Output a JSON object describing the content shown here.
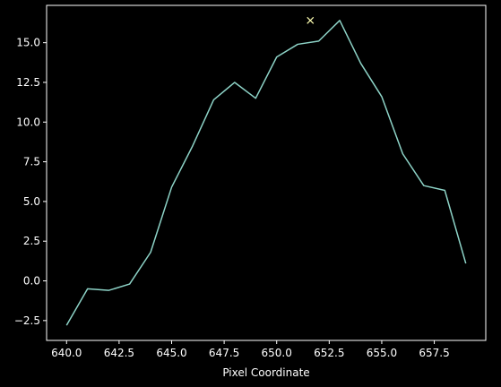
{
  "chart_data": {
    "type": "line",
    "xlabel": "Pixel Coordinate",
    "ylabel": "",
    "title": "",
    "xlim": [
      639.05,
      659.95
    ],
    "ylim": [
      -3.75,
      17.35
    ],
    "grid": false,
    "legend": "none",
    "colors": {
      "background": "#000000",
      "axes": "#ffffff",
      "line": "#8dd3c7",
      "marker": "#feffb3"
    },
    "x_ticks": [
      640.0,
      642.5,
      645.0,
      647.5,
      650.0,
      652.5,
      655.0,
      657.5
    ],
    "x_tick_labels": [
      "640.0",
      "642.5",
      "645.0",
      "647.5",
      "650.0",
      "652.5",
      "655.0",
      "657.5"
    ],
    "y_ticks": [
      -2.5,
      0.0,
      2.5,
      5.0,
      7.5,
      10.0,
      12.5,
      15.0
    ],
    "y_tick_labels": [
      "−2.5",
      "0.0",
      "2.5",
      "5.0",
      "7.5",
      "10.0",
      "12.5",
      "15.0"
    ],
    "series": [
      {
        "x": [
          640,
          641,
          642,
          643,
          644,
          645,
          646,
          647,
          648,
          649,
          650,
          651,
          652,
          653,
          654,
          655,
          656,
          657,
          658,
          659
        ],
        "y": [
          -2.8,
          -0.5,
          -0.6,
          -0.2,
          1.8,
          5.9,
          8.5,
          11.4,
          12.5,
          11.5,
          14.1,
          14.9,
          15.1,
          16.4,
          13.7,
          11.6,
          8.0,
          6.0,
          5.7,
          1.1
        ]
      }
    ],
    "markers": [
      {
        "x": 651.6,
        "y": 16.4,
        "symbol": "x"
      }
    ]
  }
}
